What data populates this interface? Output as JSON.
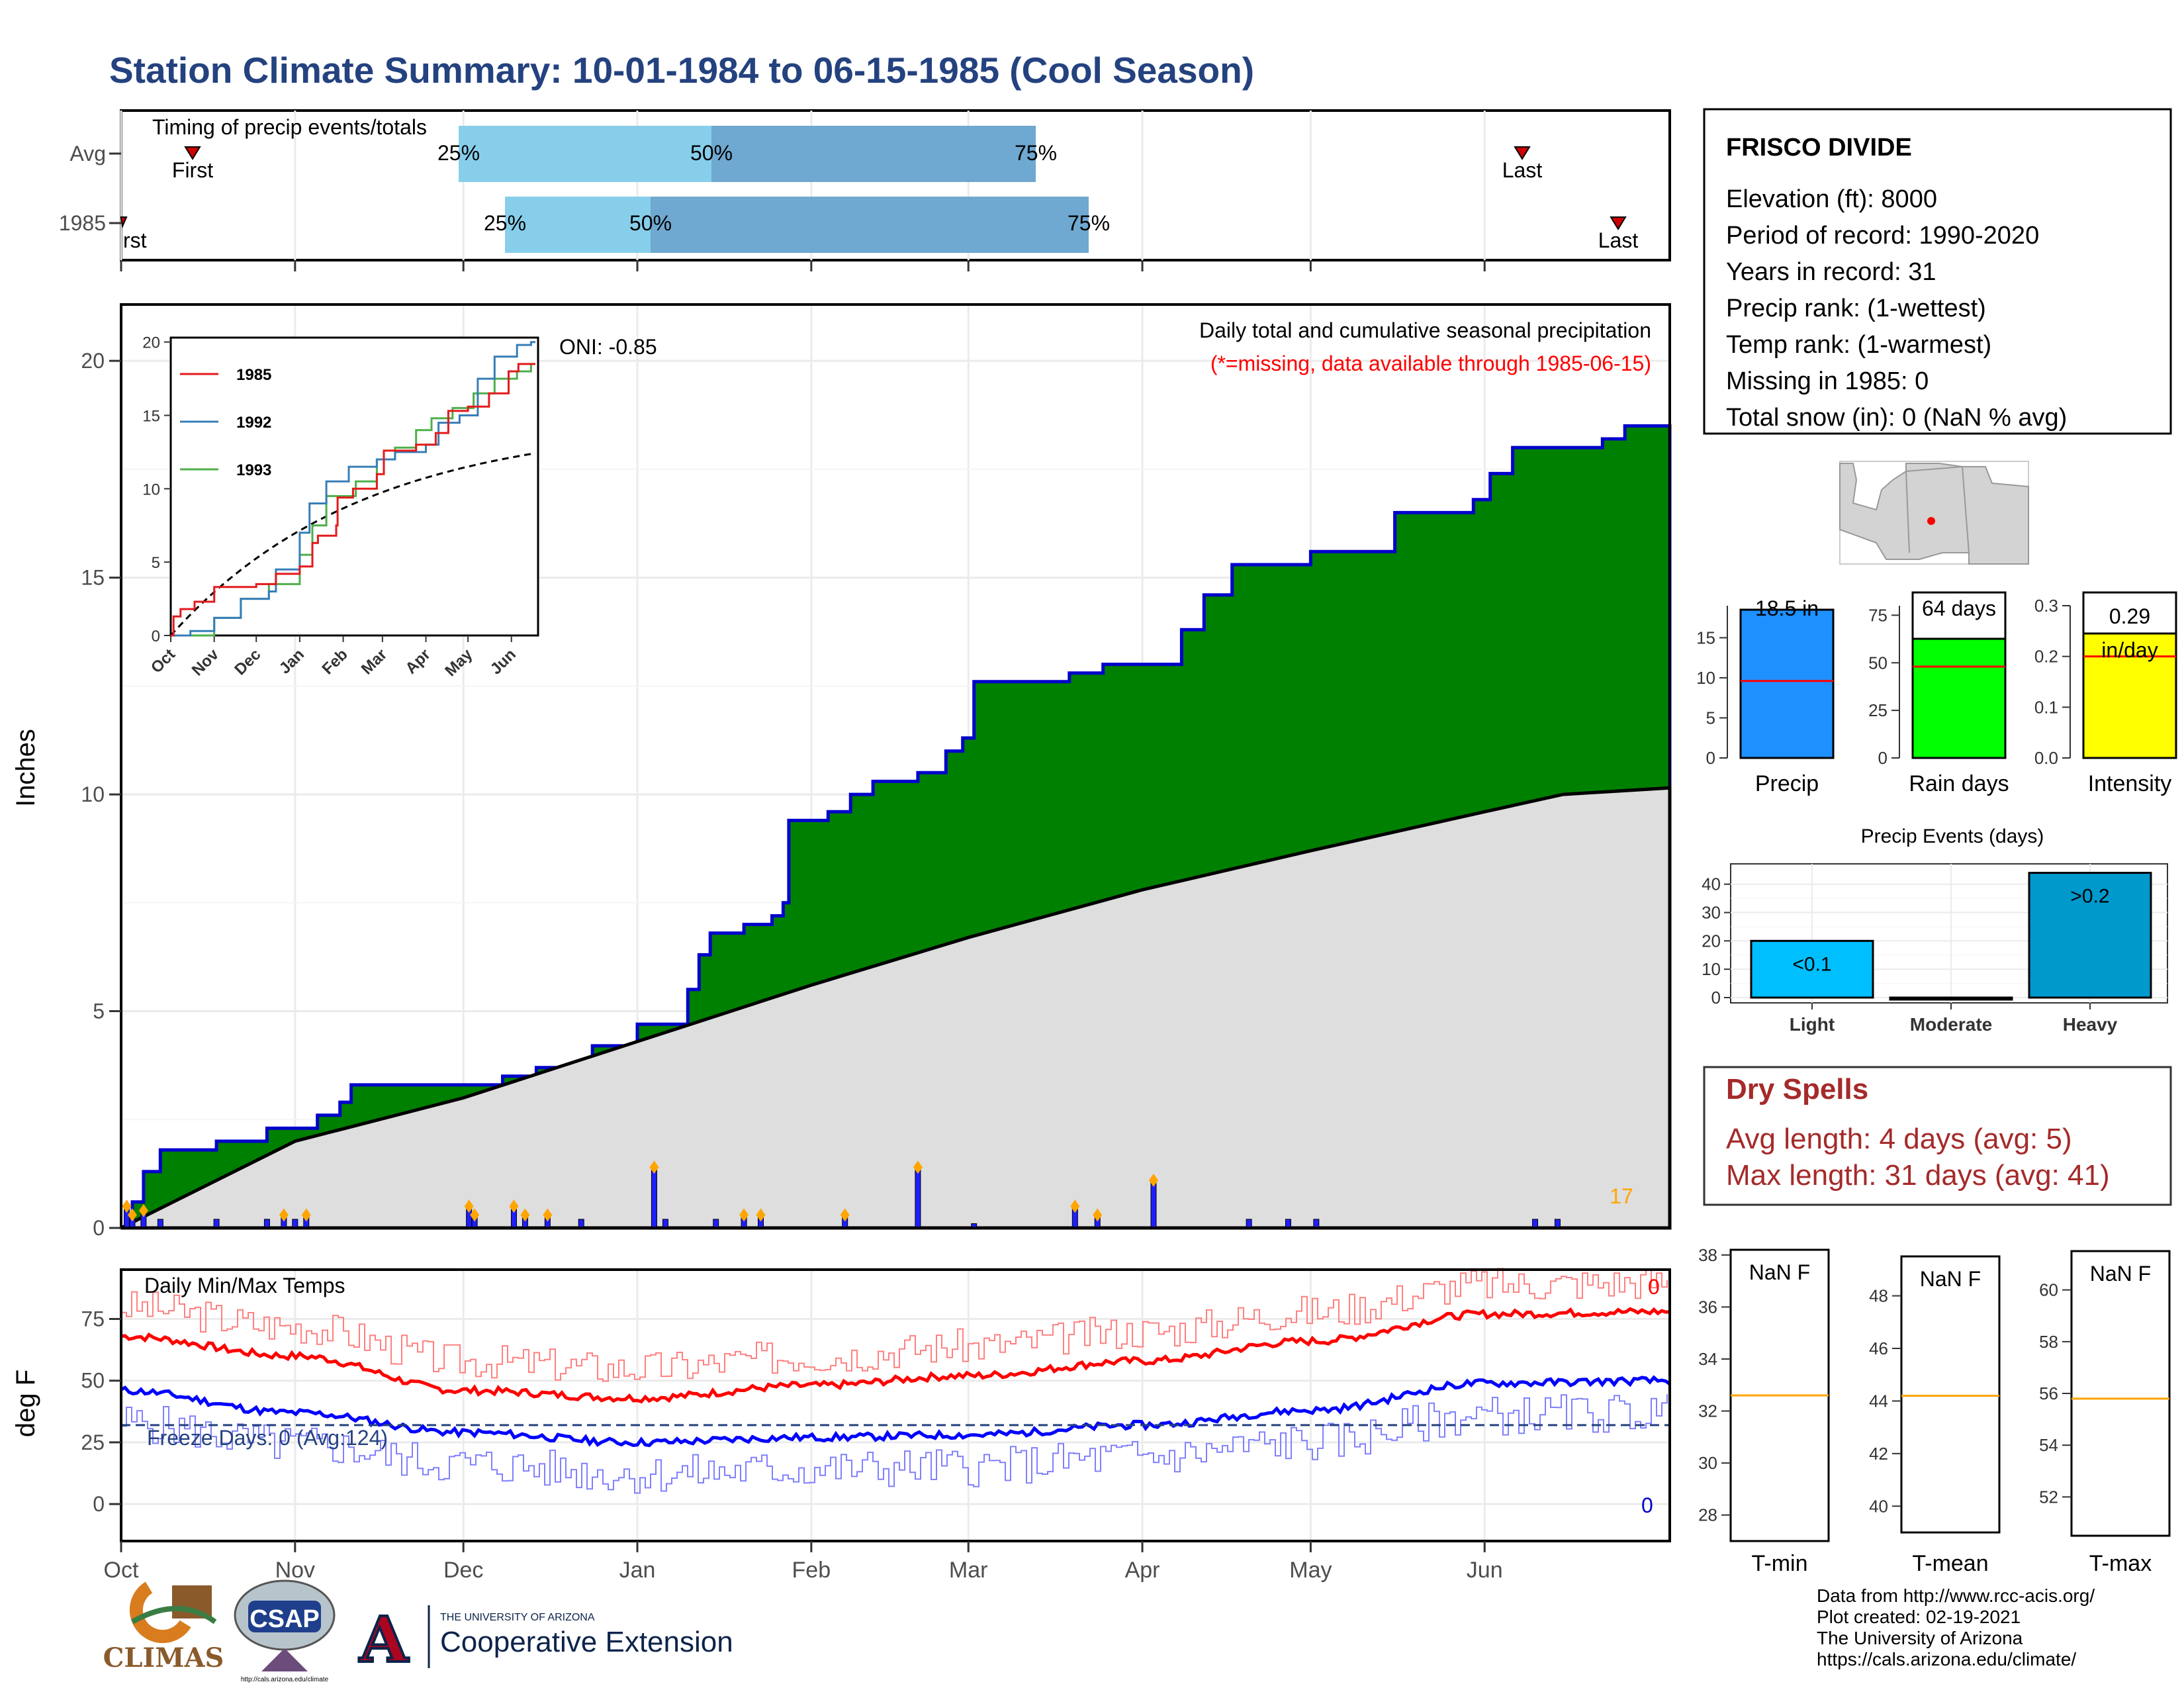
{
  "title": "Station Climate Summary: 10-01-1984 to 06-15-1985 (Cool Season)",
  "colors": {
    "title": "#24427f",
    "precip_fill": "#008000",
    "precip_outline": "#0000cc",
    "avg_fill": "#dedede",
    "timing_light": "#87ceeb",
    "timing_dark": "#6fa8d0",
    "dry_text": "#a52a2a",
    "tmax": "#ff0000",
    "tmin": "#0000ff"
  },
  "months": [
    "Oct",
    "Nov",
    "Dec",
    "Jan",
    "Feb",
    "Mar",
    "Apr",
    "May",
    "Jun"
  ],
  "timing": {
    "heading": "Timing of precip events/totals",
    "rows": [
      "Avg",
      "1985"
    ],
    "first_label": "First",
    "first_label_1985": "rst",
    "last_label": "Last",
    "pct": [
      "25%",
      "50%",
      "75%"
    ]
  },
  "precip_panel": {
    "ylabel": "Inches",
    "yticks": [
      "0",
      "5",
      "10",
      "15",
      "20"
    ],
    "oni": "ONI: -0.85",
    "legend1": "Daily total and cumulative seasonal precipitation",
    "legend2": "(*=missing, data available through 1985-06-15)",
    "marker_count": "17"
  },
  "inset": {
    "yticks": [
      "0",
      "5",
      "10",
      "15",
      "20"
    ],
    "xticks": [
      "Oct",
      "Nov",
      "Dec",
      "Jan",
      "Feb",
      "Mar",
      "Apr",
      "May",
      "Jun"
    ],
    "legend": [
      "1985",
      "1992",
      "1993"
    ],
    "series_colors": [
      "#e31a1c",
      "#377eb8",
      "#4daf4a"
    ]
  },
  "temp_panel": {
    "ylabel": "deg F",
    "yticks": [
      "0",
      "25",
      "50",
      "75"
    ],
    "heading": "Daily Min/Max Temps",
    "freeze": "Freeze Days: 0 (Avg:124)",
    "tmax_count": "0",
    "tmin_count": "0"
  },
  "station": {
    "name": "FRISCO DIVIDE",
    "lines": [
      "Elevation (ft): 8000",
      "Period of record: 1990-2020",
      "Years in record: 31",
      "Precip rank:  (1-wettest)",
      "Temp rank:  (1-warmest)",
      "Missing in 1985: 0",
      "Total snow (in): 0 (NaN % avg)"
    ]
  },
  "bars": [
    {
      "label": "Precip",
      "value_text": "18.5 in",
      "value": 18.5,
      "avg": 9.6,
      "ymax": 19,
      "ticks": [
        "0",
        "5",
        "10",
        "15"
      ],
      "tickvals": [
        0,
        5,
        10,
        15
      ],
      "color": "#1e90ff"
    },
    {
      "label": "Rain days",
      "value_text": "64 days",
      "value": 64,
      "avg": 48,
      "ymax": 80,
      "ticks": [
        "0",
        "25",
        "50",
        "75"
      ],
      "tickvals": [
        0,
        25,
        50,
        75
      ],
      "color": "#00ff00"
    },
    {
      "label": "Intensity",
      "value_text": "0.29",
      "value_text2": "in/day",
      "value": 0.29,
      "avg": 0.2,
      "ymax": 0.3,
      "ticks": [
        "0.0",
        "0.1",
        "0.2",
        "0.3"
      ],
      "tickvals": [
        0,
        0.1,
        0.2,
        0.3
      ],
      "color": "#ffff00"
    }
  ],
  "events": {
    "title": "Precip Events (days)",
    "categories": [
      "Light",
      "Moderate",
      "Heavy"
    ],
    "values": [
      20,
      0,
      44
    ],
    "labels": [
      "<0.1",
      "",
      "&gt;0.2"
    ],
    "label_text": [
      "<0.1",
      "",
      ">0.2"
    ],
    "yticks": [
      "0",
      "10",
      "20",
      "30",
      "40"
    ],
    "colors": [
      "#00bfff",
      "#1e90ff",
      "#0099cc"
    ]
  },
  "dry": {
    "title": "Dry Spells",
    "avg": "Avg length: 4 days (avg: 5)",
    "max": "Max length: 31 days (avg: 41)"
  },
  "temp_boxes": [
    {
      "label": "T-min",
      "value": "NaN F",
      "ticks": [
        "28",
        "30",
        "32",
        "34",
        "36",
        "38"
      ],
      "lo": 27,
      "hi": 38.2,
      "avgline": 32.6
    },
    {
      "label": "T-mean",
      "value": "NaN F",
      "ticks": [
        "40",
        "42",
        "44",
        "46",
        "48"
      ],
      "lo": 39,
      "hi": 49.5,
      "avgline": 44.2
    },
    {
      "label": "T-max",
      "value": "NaN F",
      "ticks": [
        "52",
        "54",
        "56",
        "58",
        "60"
      ],
      "lo": 50.5,
      "hi": 61.5,
      "avgline": 55.8
    }
  ],
  "credits": [
    "Data from http://www.rcc-acis.org/",
    "Plot created: 02-19-2021",
    "The University of Arizona",
    "https://cals.arizona.edu/climate/"
  ],
  "logos": {
    "climas": "CLIMAS",
    "csap": "CSAP",
    "csap_url": "http://cals.arizona.edu/climate",
    "ua_small": "THE UNIVERSITY OF ARIZONA",
    "ua_big": "Cooperative Extension",
    "ua_letter": "A"
  },
  "chart_data": {
    "type": "area",
    "title": "Daily total and cumulative seasonal precipitation",
    "ylabel": "Inches",
    "ylim": [
      0,
      20
    ],
    "cumulative_1985": [
      {
        "x": "1984-10-01",
        "y": 0.0
      },
      {
        "x": "1984-10-03",
        "y": 0.6
      },
      {
        "x": "1984-10-05",
        "y": 1.3
      },
      {
        "x": "1984-10-08",
        "y": 1.8
      },
      {
        "x": "1984-10-18",
        "y": 2.0
      },
      {
        "x": "1984-10-27",
        "y": 2.3
      },
      {
        "x": "1984-11-05",
        "y": 2.6
      },
      {
        "x": "1984-11-09",
        "y": 2.9
      },
      {
        "x": "1984-11-11",
        "y": 3.3
      },
      {
        "x": "1984-11-29",
        "y": 3.3
      },
      {
        "x": "1984-12-08",
        "y": 3.5
      },
      {
        "x": "1984-12-14",
        "y": 3.7
      },
      {
        "x": "1984-12-24",
        "y": 4.2
      },
      {
        "x": "1985-01-01",
        "y": 4.7
      },
      {
        "x": "1985-01-10",
        "y": 5.5
      },
      {
        "x": "1985-01-12",
        "y": 6.3
      },
      {
        "x": "1985-01-14",
        "y": 6.8
      },
      {
        "x": "1985-01-20",
        "y": 7.0
      },
      {
        "x": "1985-01-25",
        "y": 7.2
      },
      {
        "x": "1985-01-27",
        "y": 7.5
      },
      {
        "x": "1985-01-28",
        "y": 9.4
      },
      {
        "x": "1985-02-04",
        "y": 9.6
      },
      {
        "x": "1985-02-08",
        "y": 10.0
      },
      {
        "x": "1985-02-12",
        "y": 10.3
      },
      {
        "x": "1985-02-20",
        "y": 10.5
      },
      {
        "x": "1985-02-25",
        "y": 11.0
      },
      {
        "x": "1985-02-28",
        "y": 11.3
      },
      {
        "x": "1985-03-02",
        "y": 12.6
      },
      {
        "x": "1985-03-12",
        "y": 12.6
      },
      {
        "x": "1985-03-19",
        "y": 12.8
      },
      {
        "x": "1985-03-25",
        "y": 13.0
      },
      {
        "x": "1985-04-06",
        "y": 13.0
      },
      {
        "x": "1985-04-08",
        "y": 13.8
      },
      {
        "x": "1985-04-12",
        "y": 14.6
      },
      {
        "x": "1985-04-17",
        "y": 15.3
      },
      {
        "x": "1985-05-01",
        "y": 15.6
      },
      {
        "x": "1985-05-16",
        "y": 16.5
      },
      {
        "x": "1985-05-30",
        "y": 16.8
      },
      {
        "x": "1985-06-02",
        "y": 17.4
      },
      {
        "x": "1985-06-06",
        "y": 18.0
      },
      {
        "x": "1985-06-18",
        "y": 18.0
      },
      {
        "x": "1985-06-22",
        "y": 18.2
      },
      {
        "x": "1985-06-26",
        "y": 18.5
      },
      {
        "x": "1985-07-04",
        "y": 18.5
      }
    ],
    "cumulative_avg": [
      {
        "x": "1984-10-01",
        "y": 0.0
      },
      {
        "x": "1984-11-01",
        "y": 2.0
      },
      {
        "x": "1984-12-01",
        "y": 3.0
      },
      {
        "x": "1985-01-01",
        "y": 4.3
      },
      {
        "x": "1985-02-01",
        "y": 5.6
      },
      {
        "x": "1985-03-01",
        "y": 6.7
      },
      {
        "x": "1985-04-01",
        "y": 7.8
      },
      {
        "x": "1985-05-01",
        "y": 8.7
      },
      {
        "x": "1985-06-01",
        "y": 9.6
      },
      {
        "x": "1985-06-15",
        "y": 10.0
      }
    ],
    "daily_precip": [
      {
        "x": "1984-10-02",
        "y": 0.5
      },
      {
        "x": "1984-10-03",
        "y": 0.3
      },
      {
        "x": "1984-10-05",
        "y": 0.4
      },
      {
        "x": "1984-10-08",
        "y": 0.2
      },
      {
        "x": "1984-10-18",
        "y": 0.2
      },
      {
        "x": "1984-10-27",
        "y": 0.2
      },
      {
        "x": "1984-10-30",
        "y": 0.3
      },
      {
        "x": "1984-11-01",
        "y": 0.2
      },
      {
        "x": "1984-11-03",
        "y": 0.3
      },
      {
        "x": "1984-12-02",
        "y": 0.5
      },
      {
        "x": "1984-12-03",
        "y": 0.3
      },
      {
        "x": "1984-12-10",
        "y": 0.5
      },
      {
        "x": "1984-12-12",
        "y": 0.3
      },
      {
        "x": "1984-12-16",
        "y": 0.3
      },
      {
        "x": "1984-12-22",
        "y": 0.2
      },
      {
        "x": "1985-01-04",
        "y": 1.4
      },
      {
        "x": "1985-01-06",
        "y": 0.2
      },
      {
        "x": "1985-01-15",
        "y": 0.2
      },
      {
        "x": "1985-01-20",
        "y": 0.3
      },
      {
        "x": "1985-01-23",
        "y": 0.3
      },
      {
        "x": "1985-02-07",
        "y": 0.3
      },
      {
        "x": "1985-02-20",
        "y": 1.4
      },
      {
        "x": "1985-03-02",
        "y": 0.1
      },
      {
        "x": "1985-03-20",
        "y": 0.5
      },
      {
        "x": "1985-03-24",
        "y": 0.3
      },
      {
        "x": "1985-04-03",
        "y": 1.1
      },
      {
        "x": "1985-04-20",
        "y": 0.2
      },
      {
        "x": "1985-04-27",
        "y": 0.2
      },
      {
        "x": "1985-05-02",
        "y": 0.2
      },
      {
        "x": "1985-06-10",
        "y": 0.2
      },
      {
        "x": "1985-06-14",
        "y": 0.2
      }
    ],
    "tmax_smooth": [
      {
        "x": "Oct",
        "y": 68
      },
      {
        "x": "Nov",
        "y": 60
      },
      {
        "x": "Dec",
        "y": 46
      },
      {
        "x": "Jan",
        "y": 43
      },
      {
        "x": "Feb",
        "y": 48
      },
      {
        "x": "Mar",
        "y": 52
      },
      {
        "x": "Apr",
        "y": 58
      },
      {
        "x": "May",
        "y": 66
      },
      {
        "x": "Jun",
        "y": 77
      }
    ],
    "tmin_smooth": [
      {
        "x": "Oct",
        "y": 46
      },
      {
        "x": "Nov",
        "y": 37
      },
      {
        "x": "Dec",
        "y": 29
      },
      {
        "x": "Jan",
        "y": 25
      },
      {
        "x": "Feb",
        "y": 27
      },
      {
        "x": "Mar",
        "y": 28
      },
      {
        "x": "Apr",
        "y": 32
      },
      {
        "x": "May",
        "y": 38
      },
      {
        "x": "Jun",
        "y": 49
      }
    ]
  }
}
